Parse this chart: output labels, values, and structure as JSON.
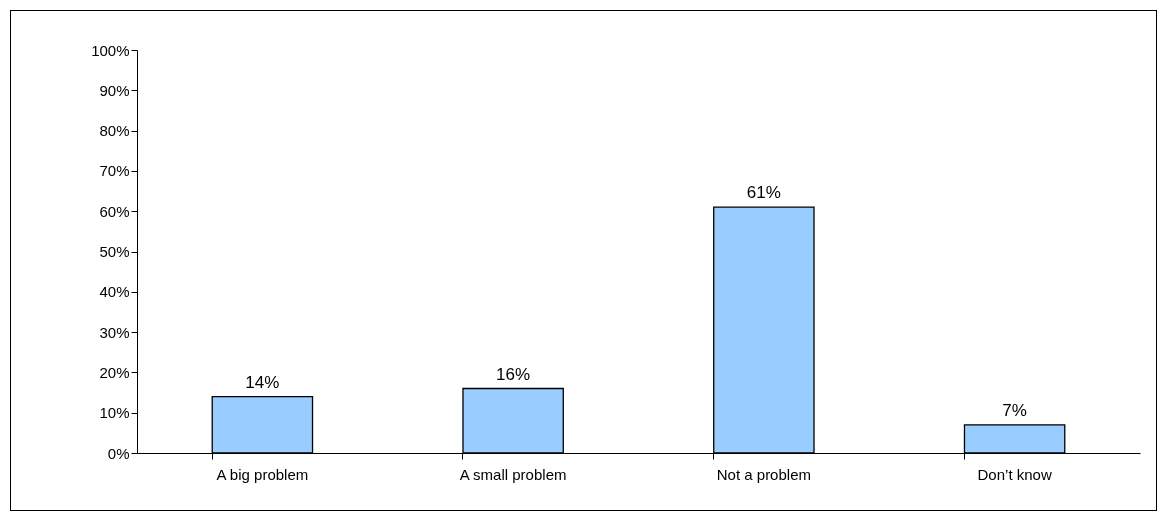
{
  "chart_data": {
    "type": "bar",
    "categories": [
      "A big problem",
      "A small problem",
      "Not a problem",
      "Don’t know"
    ],
    "values": [
      14,
      16,
      61,
      7
    ],
    "value_labels": [
      "14%",
      "16%",
      "61%",
      "7%"
    ],
    "color": "#99ccff",
    "ylim": [
      0,
      100
    ],
    "yticks": [
      {
        "value": 0,
        "label": "0%"
      },
      {
        "value": 10,
        "label": "10%"
      },
      {
        "value": 20,
        "label": "20%"
      },
      {
        "value": 30,
        "label": "30%"
      },
      {
        "value": 40,
        "label": "40%"
      },
      {
        "value": 50,
        "label": "50%"
      },
      {
        "value": 60,
        "label": "60%"
      },
      {
        "value": 70,
        "label": "70%"
      },
      {
        "value": 80,
        "label": "80%"
      },
      {
        "value": 90,
        "label": "90%"
      },
      {
        "value": 100,
        "label": "100%"
      }
    ],
    "grid": false
  }
}
